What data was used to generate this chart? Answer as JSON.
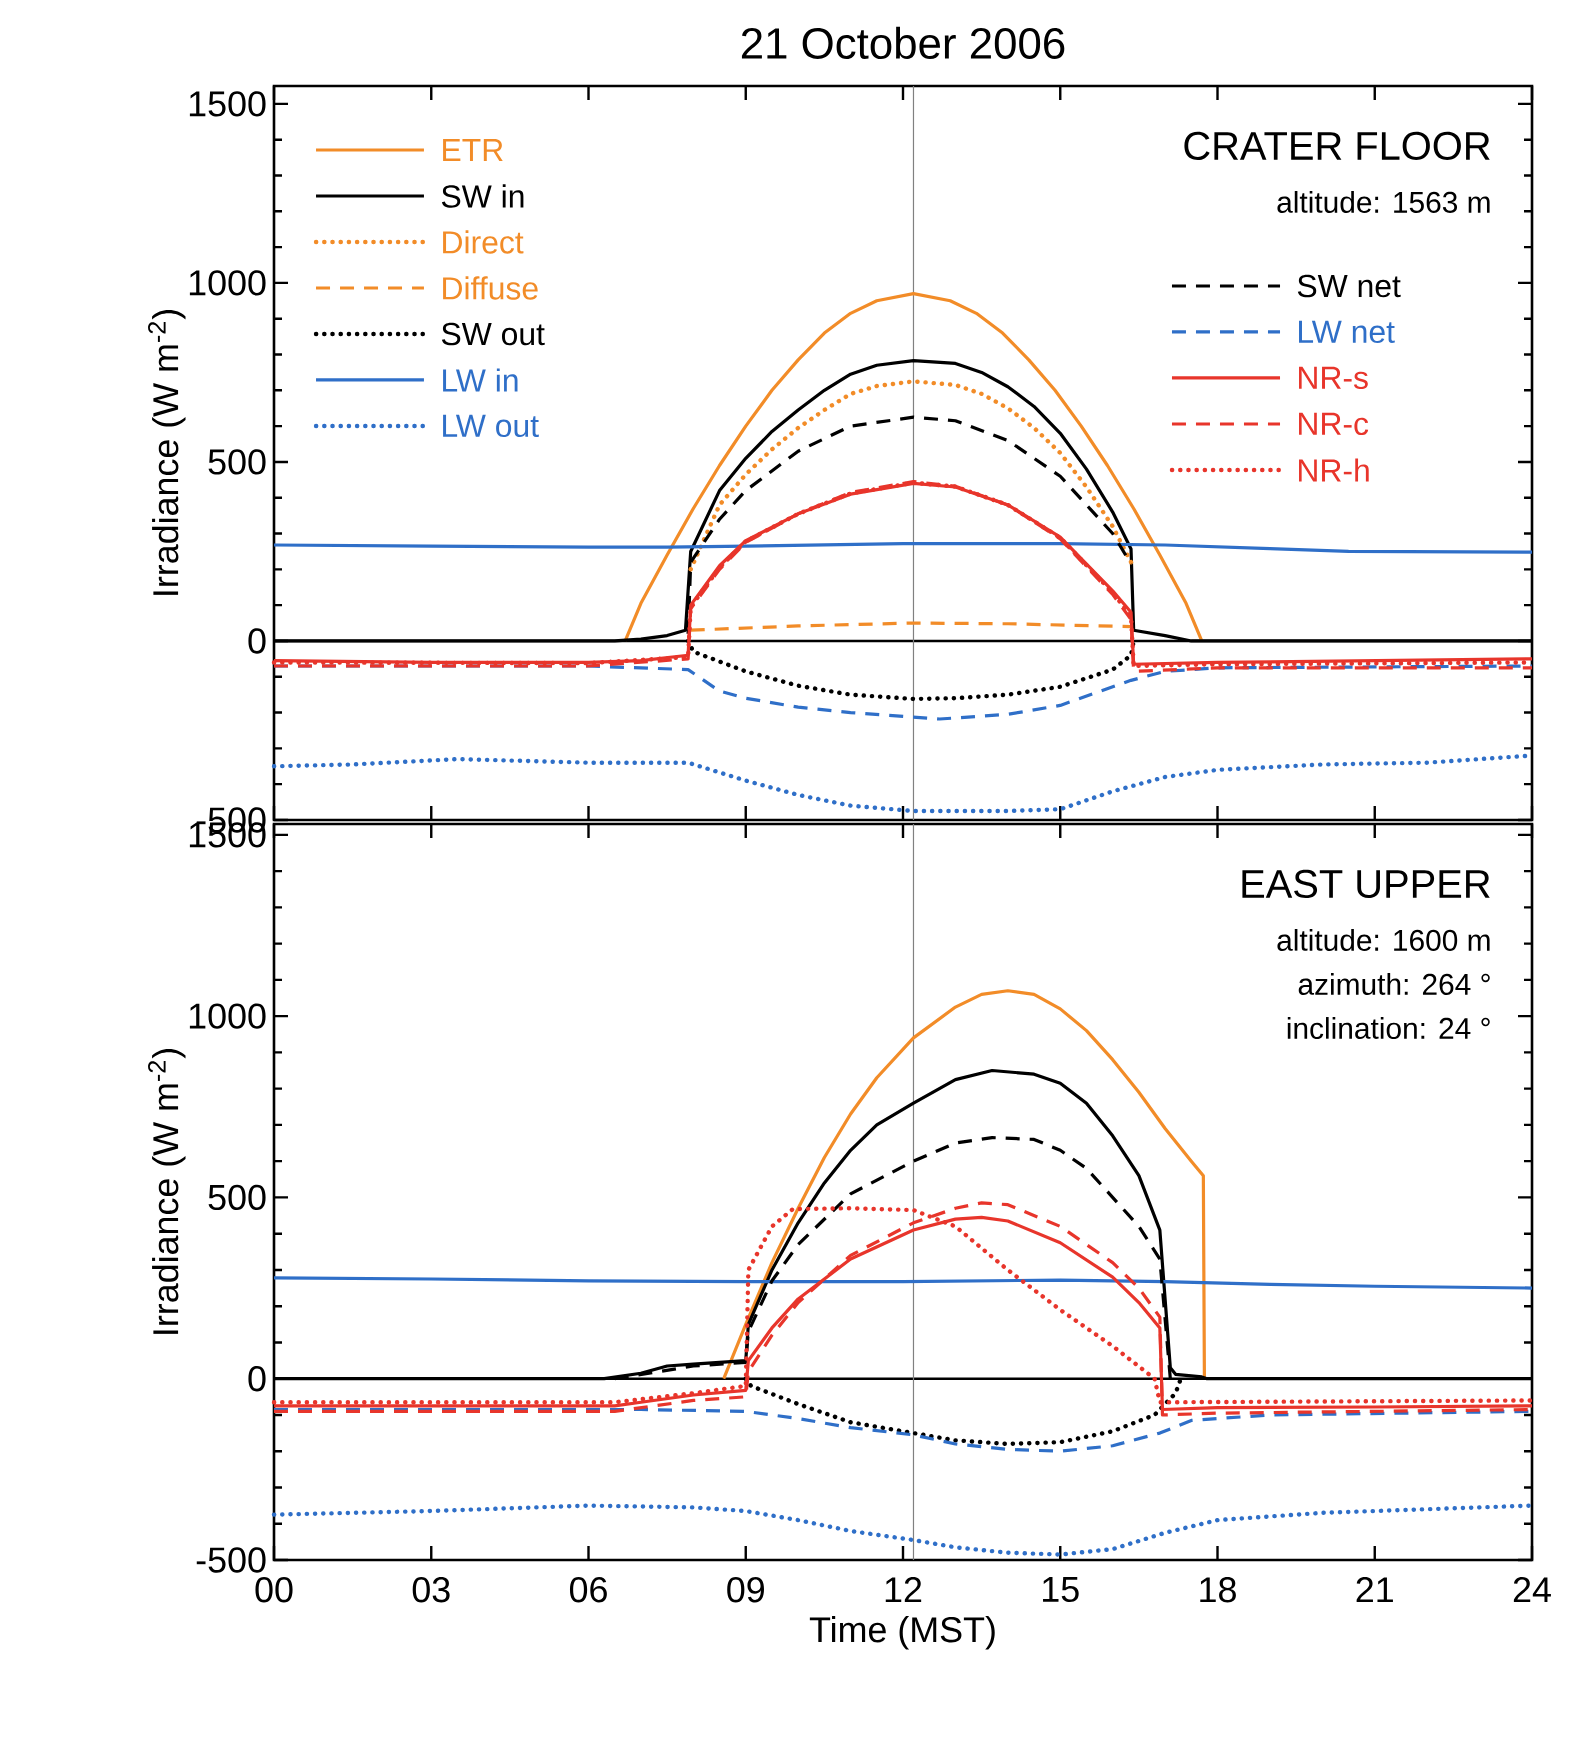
{
  "chart_data": [
    {
      "type": "line",
      "title": "21 October 2006",
      "ylabel": "Irradiance (W m$^{-2}$)",
      "xlim": [
        0,
        24
      ],
      "ylim": [
        -500,
        1550
      ],
      "xticks": [
        0,
        3,
        6,
        9,
        12,
        15,
        18,
        21,
        24
      ],
      "yticks": [
        -500,
        0,
        500,
        1000,
        1500
      ],
      "tick_labels": "y",
      "legend": "top",
      "annotations": [
        "CRATER FLOOR",
        "altitude:   1563 m"
      ],
      "ref_lines": [
        {
          "axis": "y",
          "value": 0,
          "color": "#000000"
        },
        {
          "axis": "x",
          "value": 12.2,
          "color": "#808080"
        }
      ],
      "series": [
        {
          "name": "ETR",
          "color": "#f28c28",
          "line_style": "solid",
          "x": [
            6.7,
            7,
            7.5,
            8,
            8.5,
            9,
            9.5,
            10,
            10.5,
            11,
            11.5,
            12.2,
            12.9,
            13.4,
            13.9,
            14.4,
            14.9,
            15.4,
            15.9,
            16.4,
            16.9,
            17.4,
            17.7
          ],
          "values": [
            0,
            105,
            240,
            370,
            490,
            600,
            700,
            785,
            860,
            915,
            950,
            970,
            950,
            915,
            860,
            785,
            700,
            600,
            490,
            370,
            240,
            105,
            0
          ]
        },
        {
          "name": "SW in",
          "color": "#000000",
          "line_style": "solid",
          "x": [
            0,
            6.5,
            7,
            7.5,
            7.85,
            7.95,
            8.5,
            9,
            9.5,
            10,
            10.5,
            11,
            11.5,
            12.2,
            13,
            13.5,
            14,
            14.5,
            15,
            15.5,
            16,
            16.35,
            16.4,
            17,
            17.5,
            24
          ],
          "values": [
            0,
            0,
            5,
            15,
            30,
            250,
            420,
            510,
            585,
            645,
            700,
            745,
            770,
            783,
            775,
            750,
            710,
            655,
            580,
            480,
            360,
            257,
            30,
            15,
            0,
            0
          ]
        },
        {
          "name": "Direct",
          "color": "#f28c28",
          "line_style": "dotted",
          "x": [
            7.95,
            8.5,
            9,
            9.5,
            10,
            10.5,
            11,
            11.5,
            12.2,
            13,
            13.5,
            14,
            14.5,
            15,
            15.5,
            16,
            16.35
          ],
          "values": [
            200,
            380,
            465,
            535,
            595,
            645,
            690,
            712,
            725,
            715,
            690,
            650,
            595,
            525,
            430,
            320,
            220
          ]
        },
        {
          "name": "Diffuse",
          "color": "#f28c28",
          "line_style": "dashed",
          "x": [
            7.95,
            10,
            12.2,
            14,
            16.35
          ],
          "values": [
            30,
            42,
            50,
            48,
            40
          ]
        },
        {
          "name": "SW out",
          "color": "#000000",
          "line_style": "dotted",
          "x": [
            7.9,
            8,
            9,
            10,
            11,
            12.2,
            13,
            14,
            15,
            16,
            16.35,
            16.4
          ],
          "values": [
            0,
            -30,
            -85,
            -125,
            -150,
            -162,
            -160,
            -150,
            -128,
            -80,
            -40,
            0
          ]
        },
        {
          "name": "LW in",
          "color": "#2f6fc8",
          "line_style": "solid",
          "x": [
            0,
            3,
            6,
            7.5,
            9,
            12,
            15,
            17,
            19,
            20.5,
            24
          ],
          "values": [
            268,
            265,
            262,
            262,
            265,
            272,
            272,
            268,
            258,
            250,
            248
          ]
        },
        {
          "name": "LW out",
          "color": "#2f6fc8",
          "line_style": "dotted",
          "x": [
            0,
            1.5,
            3.5,
            6,
            7.9,
            9,
            10,
            11,
            12.2,
            14,
            15,
            16,
            17,
            18,
            20,
            22,
            24
          ],
          "values": [
            -350,
            -345,
            -330,
            -340,
            -340,
            -390,
            -430,
            -460,
            -475,
            -475,
            -470,
            -420,
            -380,
            -360,
            -345,
            -340,
            -320
          ]
        },
        {
          "name": "SW net",
          "color": "#000000",
          "line_style": "dashed",
          "x": [
            7.9,
            7.95,
            8.5,
            9,
            10,
            11,
            12.2,
            13,
            14,
            15,
            16,
            16.35
          ],
          "values": [
            20,
            220,
            340,
            420,
            530,
            600,
            625,
            615,
            560,
            460,
            300,
            215
          ]
        },
        {
          "name": "LW net",
          "color": "#2f6fc8",
          "line_style": "dashed",
          "x": [
            0,
            6,
            7.9,
            8.5,
            9,
            10,
            11,
            12.7,
            14,
            15,
            16.35,
            17,
            18,
            24
          ],
          "values": [
            -70,
            -70,
            -80,
            -140,
            -160,
            -185,
            -200,
            -218,
            -205,
            -180,
            -110,
            -85,
            -75,
            -70
          ]
        },
        {
          "name": "NR-s",
          "color": "#e8352b",
          "line_style": "solid",
          "x": [
            0,
            3,
            6,
            7,
            7.9,
            7.95,
            8.5,
            9,
            10,
            11,
            12.2,
            13,
            14,
            15,
            16,
            16.35,
            16.4,
            18,
            21,
            24
          ],
          "values": [
            -55,
            -60,
            -60,
            -55,
            -40,
            100,
            210,
            280,
            355,
            410,
            440,
            430,
            380,
            290,
            140,
            80,
            -65,
            -60,
            -55,
            -50
          ]
        },
        {
          "name": "NR-c",
          "color": "#e8352b",
          "line_style": "dashed",
          "x": [
            0,
            6,
            7.9,
            7.95,
            8.5,
            9,
            10,
            11,
            12.2,
            13,
            14,
            15,
            16,
            16.35,
            16.4,
            18,
            24
          ],
          "values": [
            -70,
            -70,
            -50,
            90,
            200,
            275,
            355,
            415,
            445,
            432,
            380,
            285,
            130,
            60,
            -85,
            -75,
            -75
          ]
        },
        {
          "name": "NR-h",
          "color": "#e8352b",
          "line_style": "dotted",
          "x": [
            0,
            6,
            7.9,
            7.95,
            8.5,
            9,
            10,
            11,
            12.2,
            13,
            14,
            15,
            16,
            16.35,
            16.4,
            18,
            24
          ],
          "values": [
            -60,
            -62,
            -45,
            95,
            205,
            278,
            355,
            412,
            442,
            431,
            380,
            288,
            135,
            70,
            -70,
            -65,
            -60
          ]
        }
      ]
    },
    {
      "type": "line",
      "xlabel": "Time (MST)",
      "ylabel": "Irradiance (W m$^{-2}$)",
      "xlim": [
        0,
        24
      ],
      "ylim": [
        -500,
        1530
      ],
      "xticks": [
        {
          "value": 0,
          "label": "00"
        },
        {
          "value": 3,
          "label": "03"
        },
        {
          "value": 6,
          "label": "06"
        },
        {
          "value": 9,
          "label": "09"
        },
        {
          "value": 12,
          "label": "12"
        },
        {
          "value": 15,
          "label": "15"
        },
        {
          "value": 18,
          "label": "18"
        },
        {
          "value": 21,
          "label": "21"
        },
        {
          "value": 24,
          "label": "24"
        }
      ],
      "yticks": [
        -500,
        0,
        500,
        1000,
        1500
      ],
      "annotations": [
        "EAST UPPER",
        "altitude:   1600 m",
        "azimuth:   264 °",
        "inclination:   24 °"
      ],
      "ref_lines": [
        {
          "axis": "y",
          "value": 0,
          "color": "#000000"
        },
        {
          "axis": "x",
          "value": 12.2,
          "color": "#808080"
        }
      ],
      "series": [
        {
          "color": "#f28c28",
          "line_style": "solid",
          "x": [
            8.58,
            9,
            9.5,
            10,
            10.5,
            11,
            11.5,
            12.2,
            13,
            13.5,
            14,
            14.5,
            15,
            15.5,
            16,
            16.5,
            17,
            17.5,
            17.73,
            17.75
          ],
          "values": [
            0,
            150,
            320,
            470,
            610,
            730,
            830,
            940,
            1025,
            1060,
            1070,
            1060,
            1020,
            960,
            880,
            790,
            690,
            600,
            560,
            0
          ]
        },
        {
          "color": "#000000",
          "line_style": "solid",
          "x": [
            0,
            6.3,
            7,
            7.5,
            8,
            9,
            9.05,
            9.5,
            10,
            10.5,
            11,
            11.5,
            12.2,
            13,
            13.7,
            14.5,
            15,
            15.5,
            16,
            16.5,
            16.9,
            17.1,
            17.2,
            17.7,
            17.8,
            24
          ],
          "values": [
            0,
            0,
            15,
            35,
            40,
            50,
            150,
            300,
            430,
            540,
            630,
            700,
            760,
            825,
            850,
            840,
            815,
            760,
            670,
            560,
            410,
            30,
            12,
            5,
            0,
            0
          ]
        },
        {
          "color": "#000000",
          "line_style": "dotted",
          "x": [
            9,
            9.1,
            10,
            11,
            12.2,
            13,
            14,
            15,
            16,
            16.8,
            17.2,
            17.3
          ],
          "values": [
            0,
            -20,
            -70,
            -120,
            -150,
            -170,
            -180,
            -175,
            -145,
            -100,
            -40,
            0
          ]
        },
        {
          "color": "#2f6fc8",
          "line_style": "solid",
          "x": [
            0,
            3,
            6,
            9,
            12,
            15,
            17,
            19,
            21,
            24
          ],
          "values": [
            278,
            275,
            270,
            268,
            268,
            272,
            268,
            260,
            255,
            250
          ]
        },
        {
          "color": "#2f6fc8",
          "line_style": "dotted",
          "x": [
            0,
            3,
            6,
            8,
            9,
            10,
            11,
            12.2,
            13,
            14,
            15,
            16,
            17,
            18,
            20,
            22,
            24
          ],
          "values": [
            -375,
            -365,
            -350,
            -355,
            -365,
            -390,
            -420,
            -445,
            -465,
            -480,
            -485,
            -470,
            -425,
            -390,
            -370,
            -360,
            -350
          ]
        },
        {
          "color": "#000000",
          "line_style": "dashed",
          "x": [
            6.5,
            8,
            9,
            9.05,
            9.5,
            10,
            11,
            12.2,
            13,
            13.7,
            14.5,
            15,
            15.5,
            16,
            16.5,
            16.9,
            17.1
          ],
          "values": [
            0,
            35,
            45,
            130,
            270,
            370,
            510,
            600,
            650,
            665,
            660,
            630,
            580,
            500,
            420,
            330,
            0
          ]
        },
        {
          "color": "#2f6fc8",
          "line_style": "dashed",
          "x": [
            0,
            7,
            9,
            10,
            11,
            12.2,
            13,
            14,
            15,
            16,
            16.9,
            17.5,
            19,
            24
          ],
          "values": [
            -85,
            -85,
            -90,
            -110,
            -135,
            -155,
            -180,
            -195,
            -200,
            -185,
            -150,
            -115,
            -100,
            -90
          ]
        },
        {
          "color": "#e8352b",
          "line_style": "solid",
          "x": [
            0,
            6.5,
            7,
            8,
            9,
            9.05,
            9.5,
            10,
            11,
            12.2,
            13,
            13.5,
            14,
            15,
            16,
            16.5,
            16.9,
            16.95,
            18,
            21,
            24
          ],
          "values": [
            -75,
            -75,
            -65,
            -45,
            -32,
            50,
            140,
            220,
            330,
            410,
            440,
            445,
            435,
            375,
            280,
            210,
            140,
            -85,
            -80,
            -78,
            -75
          ]
        },
        {
          "color": "#e8352b",
          "line_style": "dashed",
          "x": [
            0,
            6.5,
            8,
            9,
            9.05,
            9.5,
            10,
            11,
            12.2,
            13,
            13.5,
            14,
            15,
            16,
            16.5,
            16.9,
            16.95,
            18,
            21,
            24
          ],
          "values": [
            -90,
            -90,
            -60,
            -50,
            20,
            120,
            210,
            340,
            430,
            470,
            485,
            480,
            420,
            320,
            250,
            170,
            -100,
            -95,
            -90,
            -85
          ]
        },
        {
          "color": "#e8352b",
          "line_style": "dotted",
          "x": [
            0,
            6.5,
            8,
            9,
            9.05,
            9.5,
            9.9,
            11,
            12.2,
            13,
            14,
            15,
            16,
            16.8,
            16.9,
            24
          ],
          "values": [
            -65,
            -65,
            -40,
            -20,
            300,
            420,
            468,
            470,
            465,
            420,
            300,
            190,
            90,
            0,
            -65,
            -60
          ]
        }
      ]
    }
  ]
}
